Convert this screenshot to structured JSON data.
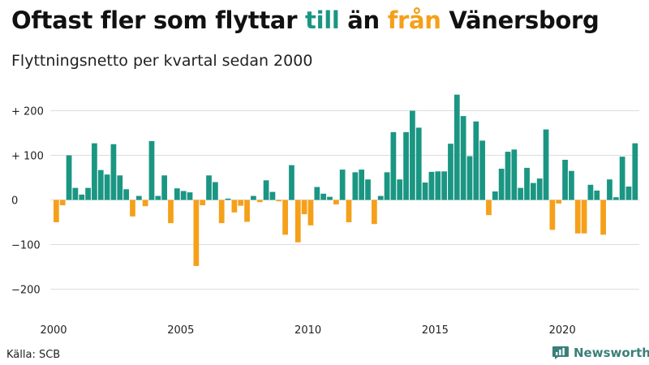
{
  "header": {
    "title_parts": [
      {
        "text": "Oftast fler som flyttar ",
        "color": "#111111"
      },
      {
        "text": "till",
        "color": "#1a9683"
      },
      {
        "text": " än ",
        "color": "#111111"
      },
      {
        "text": "från",
        "color": "#f5a01a"
      },
      {
        "text": " Vänersborg",
        "color": "#111111"
      }
    ],
    "subtitle": "Flyttningsnetto per kvartal sedan 2000"
  },
  "footer": {
    "source": "Källa: SCB",
    "brand": "Newsworthy",
    "brand_icon": "bar-chart-logo-icon"
  },
  "chart_data": {
    "type": "bar",
    "start_year": 2000,
    "periods_per_year": 4,
    "title": "Oftast fler som flyttar till än från Vänersborg",
    "subtitle": "Flyttningsnetto per kvartal sedan 2000",
    "ylim": [
      -200,
      250
    ],
    "yticks": [
      {
        "value": 200,
        "label": "+ 200"
      },
      {
        "value": 100,
        "label": "+ 100"
      },
      {
        "value": 0,
        "label": "0"
      },
      {
        "value": -100,
        "label": "−100"
      },
      {
        "value": -200,
        "label": "−200"
      }
    ],
    "xticks": [
      {
        "value": 2000,
        "label": "2000"
      },
      {
        "value": 2005,
        "label": "2005"
      },
      {
        "value": 2010,
        "label": "2010"
      },
      {
        "value": 2015,
        "label": "2015"
      },
      {
        "value": 2020,
        "label": "2020"
      }
    ],
    "grid": true,
    "positive_color": "#1a9683",
    "negative_color": "#f5a01a",
    "values": [
      -50,
      -12,
      100,
      27,
      12,
      27,
      127,
      67,
      57,
      125,
      55,
      24,
      -37,
      9,
      -14,
      132,
      9,
      55,
      -52,
      26,
      20,
      17,
      -148,
      -12,
      55,
      40,
      -52,
      3,
      -28,
      -13,
      -49,
      9,
      -5,
      44,
      18,
      -3,
      -78,
      78,
      -95,
      -32,
      -57,
      29,
      14,
      7,
      -10,
      68,
      -50,
      62,
      68,
      46,
      -54,
      9,
      62,
      152,
      46,
      152,
      200,
      162,
      39,
      63,
      64,
      64,
      126,
      236,
      188,
      98,
      176,
      133,
      -34,
      19,
      70,
      108,
      113,
      27,
      72,
      38,
      48,
      158,
      -67,
      -8,
      90,
      65,
      -75,
      -75,
      34,
      21,
      -78,
      46,
      6,
      97,
      30,
      127
    ]
  }
}
